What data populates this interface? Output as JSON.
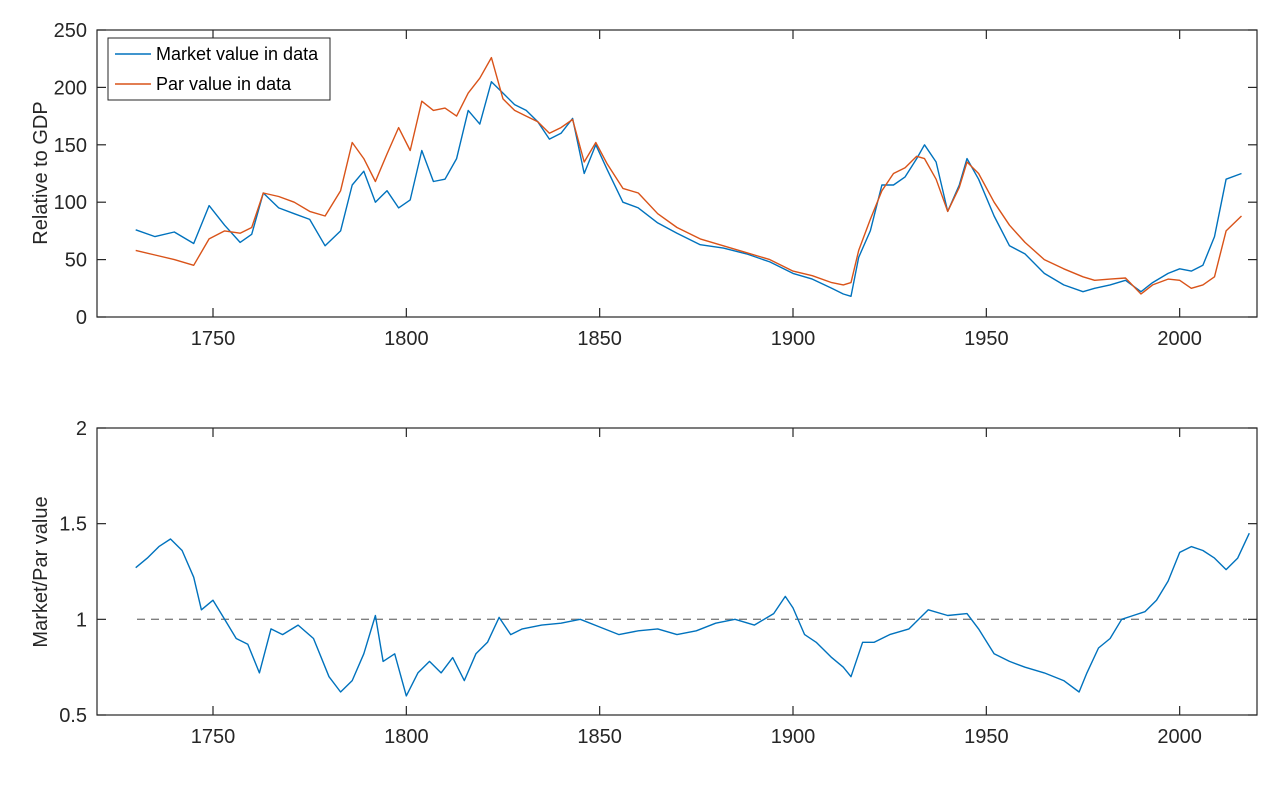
{
  "chart_data": [
    {
      "type": "line",
      "ylabel": "Relative to GDP",
      "xlim": [
        1720,
        2020
      ],
      "ylim": [
        0,
        250
      ],
      "xticks": [
        "1750",
        "1800",
        "1850",
        "1900",
        "1950",
        "2000"
      ],
      "yticks": [
        "0",
        "50",
        "100",
        "150",
        "200",
        "250"
      ],
      "legend_position": "top-left",
      "x": [
        1730,
        1735,
        1740,
        1745,
        1749,
        1753,
        1757,
        1760,
        1763,
        1767,
        1771,
        1775,
        1779,
        1783,
        1786,
        1789,
        1792,
        1795,
        1798,
        1801,
        1804,
        1807,
        1810,
        1813,
        1816,
        1819,
        1822,
        1825,
        1828,
        1831,
        1834,
        1837,
        1840,
        1843,
        1846,
        1849,
        1852,
        1856,
        1860,
        1865,
        1870,
        1876,
        1882,
        1888,
        1894,
        1900,
        1905,
        1910,
        1913,
        1915,
        1917,
        1920,
        1923,
        1926,
        1929,
        1932,
        1934,
        1937,
        1940,
        1943,
        1945,
        1948,
        1952,
        1956,
        1960,
        1965,
        1970,
        1975,
        1978,
        1982,
        1986,
        1990,
        1993,
        1997,
        2000,
        2003,
        2006,
        2009,
        2012,
        2016
      ],
      "series": [
        {
          "name": "Market value in data",
          "color": "#0072BD",
          "values": [
            76,
            70,
            74,
            64,
            97,
            80,
            65,
            72,
            108,
            95,
            90,
            85,
            62,
            75,
            115,
            127,
            100,
            110,
            95,
            102,
            145,
            118,
            120,
            138,
            180,
            168,
            205,
            195,
            185,
            180,
            170,
            155,
            160,
            173,
            125,
            150,
            128,
            100,
            95,
            82,
            73,
            63,
            60,
            55,
            48,
            38,
            33,
            25,
            20,
            18,
            52,
            75,
            115,
            115,
            122,
            138,
            150,
            135,
            92,
            115,
            138,
            120,
            88,
            62,
            55,
            38,
            28,
            22,
            25,
            28,
            32,
            22,
            30,
            38,
            42,
            40,
            45,
            70,
            120,
            125
          ]
        },
        {
          "name": "Par value in data",
          "color": "#D95319",
          "values": [
            58,
            54,
            50,
            45,
            68,
            75,
            73,
            78,
            108,
            105,
            100,
            92,
            88,
            110,
            152,
            138,
            118,
            142,
            165,
            145,
            188,
            180,
            182,
            175,
            195,
            208,
            226,
            190,
            180,
            175,
            170,
            160,
            165,
            172,
            135,
            152,
            133,
            112,
            108,
            90,
            78,
            68,
            62,
            56,
            50,
            40,
            36,
            30,
            28,
            30,
            58,
            85,
            110,
            125,
            130,
            140,
            138,
            120,
            92,
            113,
            135,
            125,
            100,
            80,
            65,
            50,
            42,
            35,
            32,
            33,
            34,
            20,
            28,
            33,
            32,
            25,
            28,
            35,
            75,
            88
          ]
        }
      ]
    },
    {
      "type": "line",
      "ylabel": "Market/Par value",
      "xlim": [
        1720,
        2020
      ],
      "ylim": [
        0.5,
        2
      ],
      "xticks": [
        "1750",
        "1800",
        "1850",
        "1900",
        "1950",
        "2000"
      ],
      "yticks": [
        "0.5",
        "1",
        "1.5",
        "2"
      ],
      "reference_line": 1,
      "x": [
        1730,
        1733,
        1736,
        1739,
        1742,
        1745,
        1747,
        1750,
        1753,
        1756,
        1759,
        1762,
        1765,
        1768,
        1772,
        1776,
        1780,
        1783,
        1786,
        1789,
        1792,
        1794,
        1797,
        1800,
        1803,
        1806,
        1809,
        1812,
        1815,
        1818,
        1821,
        1824,
        1827,
        1830,
        1835,
        1840,
        1845,
        1850,
        1855,
        1860,
        1865,
        1870,
        1875,
        1880,
        1885,
        1890,
        1895,
        1898,
        1900,
        1903,
        1906,
        1910,
        1913,
        1915,
        1918,
        1921,
        1925,
        1930,
        1935,
        1940,
        1945,
        1948,
        1952,
        1956,
        1960,
        1965,
        1970,
        1974,
        1976,
        1979,
        1982,
        1985,
        1988,
        1991,
        1994,
        1997,
        2000,
        2003,
        2006,
        2009,
        2012,
        2015,
        2018
      ],
      "series": [
        {
          "name": "Market/Par value",
          "color": "#0072BD",
          "values": [
            1.27,
            1.32,
            1.38,
            1.42,
            1.36,
            1.22,
            1.05,
            1.1,
            1.0,
            0.9,
            0.87,
            0.72,
            0.95,
            0.92,
            0.97,
            0.9,
            0.7,
            0.62,
            0.68,
            0.82,
            1.02,
            0.78,
            0.82,
            0.6,
            0.72,
            0.78,
            0.72,
            0.8,
            0.68,
            0.82,
            0.88,
            1.01,
            0.92,
            0.95,
            0.97,
            0.98,
            1.0,
            0.96,
            0.92,
            0.94,
            0.95,
            0.92,
            0.94,
            0.98,
            1.0,
            0.97,
            1.03,
            1.12,
            1.06,
            0.92,
            0.88,
            0.8,
            0.75,
            0.7,
            0.88,
            0.88,
            0.92,
            0.95,
            1.05,
            1.02,
            1.03,
            0.95,
            0.82,
            0.78,
            0.75,
            0.72,
            0.68,
            0.62,
            0.72,
            0.85,
            0.9,
            1.0,
            1.02,
            1.04,
            1.1,
            1.2,
            1.35,
            1.38,
            1.36,
            1.32,
            1.26,
            1.32,
            1.45
          ]
        }
      ]
    }
  ]
}
